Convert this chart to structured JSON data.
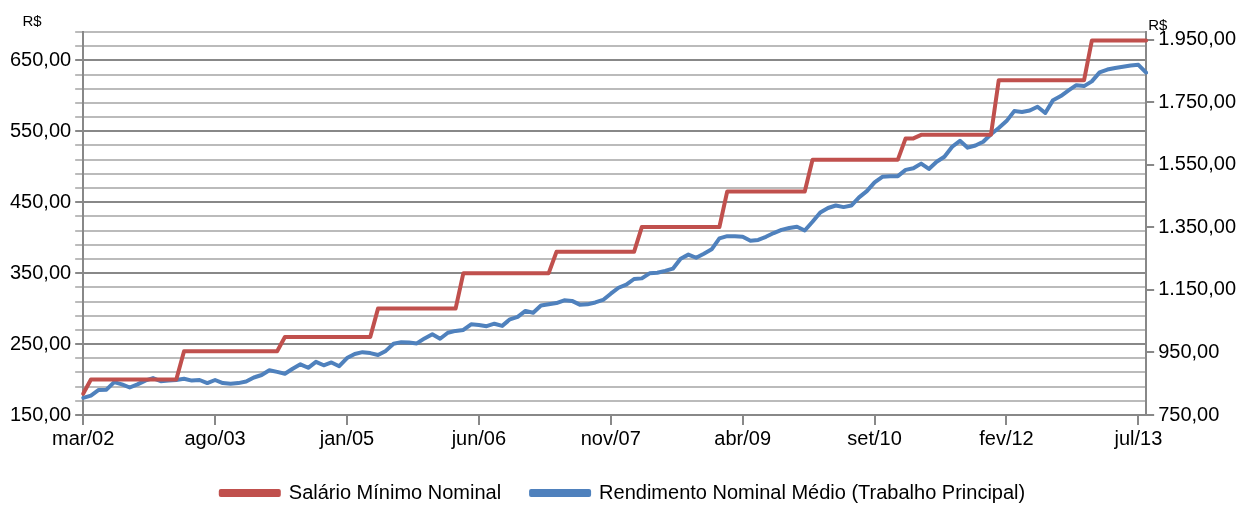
{
  "chart_data": {
    "type": "line",
    "ylabel": "R$",
    "y2label": "R$",
    "categories": [
      "mar/02",
      null,
      null,
      null,
      null,
      null,
      null,
      null,
      null,
      null,
      null,
      null,
      null,
      null,
      null,
      null,
      null,
      "ago/03",
      null,
      null,
      null,
      null,
      null,
      null,
      null,
      null,
      null,
      null,
      null,
      null,
      null,
      null,
      null,
      null,
      "jan/05",
      null,
      null,
      null,
      null,
      null,
      null,
      null,
      null,
      null,
      null,
      null,
      null,
      null,
      null,
      null,
      null,
      "jun/06",
      null,
      null,
      null,
      null,
      null,
      null,
      null,
      null,
      null,
      null,
      null,
      null,
      null,
      null,
      null,
      null,
      "nov/07",
      null,
      null,
      null,
      null,
      null,
      null,
      null,
      null,
      null,
      null,
      null,
      null,
      null,
      null,
      null,
      null,
      "abr/09",
      null,
      null,
      null,
      null,
      null,
      null,
      null,
      null,
      null,
      null,
      null,
      null,
      null,
      null,
      null,
      null,
      "set/10",
      null,
      null,
      null,
      null,
      null,
      null,
      null,
      null,
      null,
      null,
      null,
      null,
      null,
      null,
      null,
      null,
      "fev/12",
      null,
      null,
      null,
      null,
      null,
      null,
      null,
      null,
      null,
      null,
      null,
      null,
      null,
      null,
      null,
      null,
      "jul/13",
      null
    ],
    "series": [
      {
        "name": "Salário Mínimo Nominal",
        "color": "#c0504d",
        "values": [
          180,
          200,
          200,
          200,
          200,
          200,
          200,
          200,
          200,
          200,
          200,
          200,
          200,
          240,
          240,
          240,
          240,
          240,
          240,
          240,
          240,
          240,
          240,
          240,
          240,
          240,
          260,
          260,
          260,
          260,
          260,
          260,
          260,
          260,
          260,
          260,
          260,
          260,
          300,
          300,
          300,
          300,
          300,
          300,
          300,
          300,
          300,
          300,
          300,
          350,
          350,
          350,
          350,
          350,
          350,
          350,
          350,
          350,
          350,
          350,
          350,
          380,
          380,
          380,
          380,
          380,
          380,
          380,
          380,
          380,
          380,
          380,
          415,
          415,
          415,
          415,
          415,
          415,
          415,
          415,
          415,
          415,
          415,
          465,
          465,
          465,
          465,
          465,
          465,
          465,
          465,
          465,
          465,
          465,
          510,
          510,
          510,
          510,
          510,
          510,
          510,
          510,
          510,
          510,
          510,
          510,
          540,
          540,
          545,
          545,
          545,
          545,
          545,
          545,
          545,
          545,
          545,
          545,
          622,
          622,
          622,
          622,
          622,
          622,
          622,
          622,
          622,
          622,
          622,
          622,
          678,
          678,
          678,
          678,
          678,
          678,
          678,
          678
        ]
      },
      {
        "name": "Rendimento Nominal Médio (Trabalho Principal)",
        "color": "#4f81bd",
        "axis": "y2",
        "values": [
          805,
          812,
          830,
          831,
          855,
          848,
          838,
          848,
          860,
          868,
          858,
          860,
          862,
          866,
          860,
          862,
          852,
          862,
          852,
          850,
          852,
          857,
          870,
          878,
          893,
          888,
          882,
          898,
          912,
          901,
          920,
          909,
          918,
          906,
          932,
          945,
          951,
          948,
          942,
          955,
          978,
          983,
          982,
          979,
          995,
          1008,
          994,
          1013,
          1019,
          1022,
          1040,
          1038,
          1034,
          1042,
          1035,
          1056,
          1064,
          1083,
          1077,
          1100,
          1104,
          1108,
          1117,
          1115,
          1103,
          1104,
          1110,
          1118,
          1138,
          1157,
          1167,
          1185,
          1187,
          1203,
          1205,
          1211,
          1218,
          1250,
          1263,
          1253,
          1266,
          1280,
          1315,
          1322,
          1322,
          1320,
          1307,
          1310,
          1320,
          1332,
          1342,
          1348,
          1352,
          1340,
          1368,
          1398,
          1412,
          1420,
          1415,
          1420,
          1446,
          1466,
          1494,
          1512,
          1514,
          1514,
          1534,
          1539,
          1554,
          1537,
          1560,
          1576,
          1608,
          1627,
          1605,
          1612,
          1624,
          1648,
          1668,
          1690,
          1722,
          1719,
          1724,
          1736,
          1716,
          1757,
          1770,
          1788,
          1805,
          1802,
          1817,
          1846,
          1855,
          1860,
          1864,
          1868,
          1870,
          1845
        ]
      }
    ],
    "ylim": [
      150,
      690
    ],
    "yticks": [
      {
        "value": 150,
        "label": "150,00"
      },
      {
        "value": 170,
        "label": null
      },
      {
        "value": 190,
        "label": null
      },
      {
        "value": 210,
        "label": null
      },
      {
        "value": 230,
        "label": null
      },
      {
        "value": 250,
        "label": "250,00"
      },
      {
        "value": 270,
        "label": null
      },
      {
        "value": 290,
        "label": null
      },
      {
        "value": 310,
        "label": null
      },
      {
        "value": 330,
        "label": null
      },
      {
        "value": 350,
        "label": "350,00"
      },
      {
        "value": 370,
        "label": null
      },
      {
        "value": 390,
        "label": null
      },
      {
        "value": 410,
        "label": null
      },
      {
        "value": 430,
        "label": null
      },
      {
        "value": 450,
        "label": "450,00"
      },
      {
        "value": 470,
        "label": null
      },
      {
        "value": 490,
        "label": null
      },
      {
        "value": 510,
        "label": null
      },
      {
        "value": 530,
        "label": null
      },
      {
        "value": 550,
        "label": "550,00"
      },
      {
        "value": 570,
        "label": null
      },
      {
        "value": 590,
        "label": null
      },
      {
        "value": 610,
        "label": null
      },
      {
        "value": 630,
        "label": null
      },
      {
        "value": 650,
        "label": "650,00"
      },
      {
        "value": 670,
        "label": null
      },
      {
        "value": 690,
        "label": null
      }
    ],
    "y2lim": [
      750,
      1975
    ],
    "y2ticks": [
      {
        "value": 750,
        "label": "750,00"
      },
      {
        "value": 950,
        "label": "950,00"
      },
      {
        "value": 1150,
        "label": "1.150,00"
      },
      {
        "value": 1350,
        "label": "1.350,00"
      },
      {
        "value": 1550,
        "label": "1.550,00"
      },
      {
        "value": 1750,
        "label": "1.750,00"
      },
      {
        "value": 1950,
        "label": "1.950,00"
      }
    ],
    "grid": "y",
    "legend": "bottom",
    "marker": "none",
    "line_style": "solid"
  }
}
